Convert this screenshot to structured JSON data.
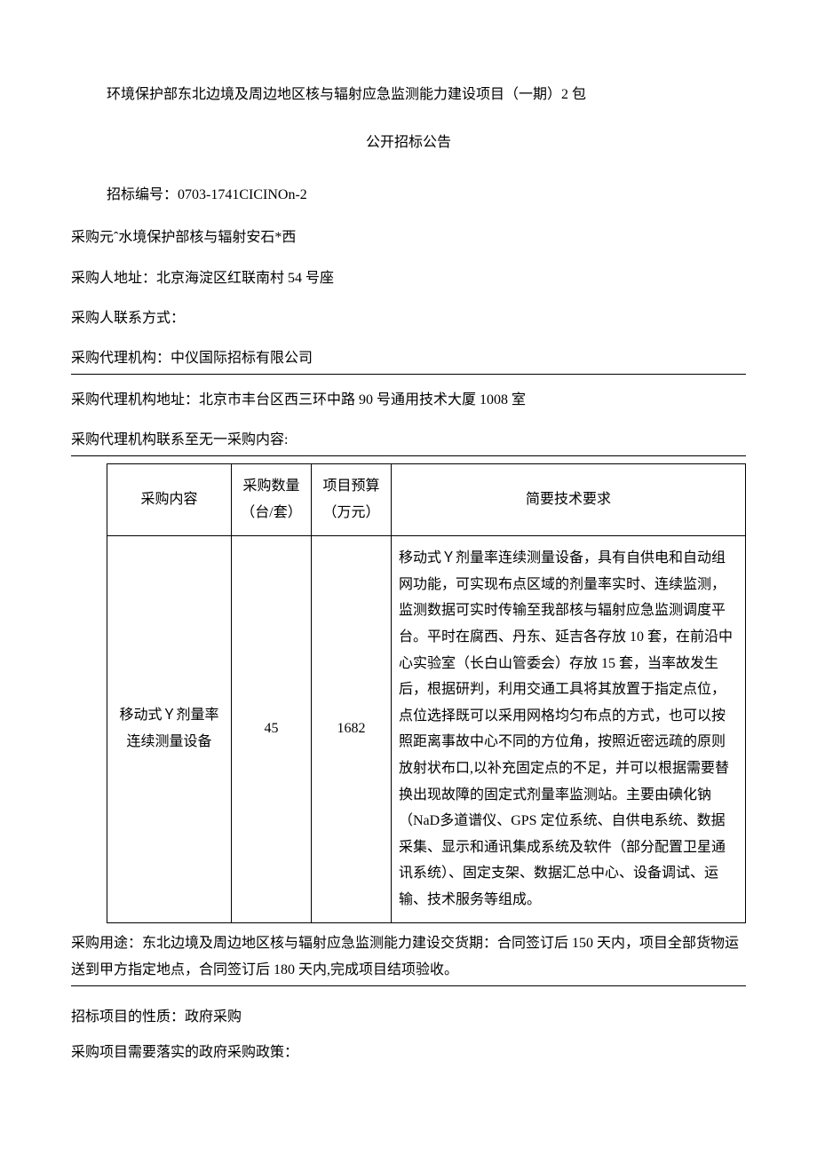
{
  "title": "环境保护部东北边境及周边地区核与辐射应急监测能力建设项目（一期）2 包",
  "subtitle": "公开招标公告",
  "bid_number_label": "招标编号：",
  "bid_number": "0703-1741CICINOn-2",
  "purchaser_label": "采购元ˆ水境保护部核与辐射安石*西",
  "address_label": "采购人地址：",
  "address": "北京海淀区红联南村 54 号座",
  "contact_label": "采购人联系方式：",
  "agent_label": "采购代理机构：",
  "agent": "中仪国际招标有限公司",
  "agent_address_label": "采购代理机构地址：",
  "agent_address": "北京市丰台区西三环中路 90 号通用技术大厦 1008 室",
  "agent_contact_label": "采购代理机构联系至无一采购内容:",
  "table": {
    "headers": {
      "content": "采购内容",
      "qty": "采购数量（台/套）",
      "budget": "项目预算（万元）",
      "req": "简要技术要求"
    },
    "row": {
      "content": "移动式Ｙ剂量率连续测量设备",
      "qty": "45",
      "budget": "1682",
      "req": "移动式Ｙ剂量率连续测量设备，具有自供电和自动组网功能，可实现布点区域的剂量率实时、连续监测，监测数据可实时传输至我部核与辐射应急监测调度平台。平时在腐西、丹东、延吉各存放 10 套，在前沿中心实验室（长白山管委会）存放 15 套，当率故发生后，根据研判，利用交通工具将其放置于指定点位，点位选择既可以采用网格均匀布点的方式，也可以按照距离事故中心不同的方位角，按照近密远疏的原则放射状布口,以补充固定点的不足，并可以根据需要替换出现故障的固定式剂量率监测站。主要由碘化钠（NaD多道谱仪、GPS 定位系统、自供电系统、数据采集、显示和通讯集成系统及软件（部分配置卫星通讯系统）、固定支架、数据汇总中心、设备调试、运输、技术服务等组成。"
    }
  },
  "delivery": "采购用途：东北边境及周边地区核与辐射应急监测能力建设交货期：合同签订后 150 天内，项目全部货物运送到甲方指定地点，合同签订后 180 天内,完成项目结项验收。",
  "nature_label": "招标项目的性质：",
  "nature": "政府采购",
  "policy_label": "采购项目需要落实的政府采购政策："
}
